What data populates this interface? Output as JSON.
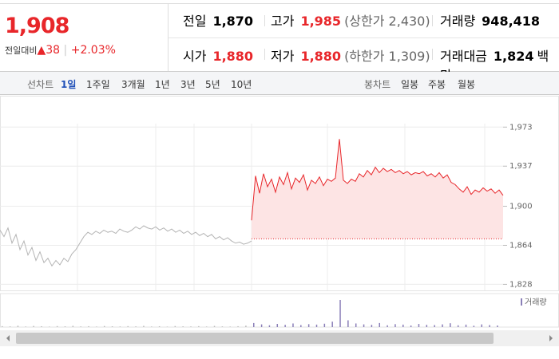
{
  "header": {
    "price": "1,908",
    "change_label": "전일대비",
    "change": "38",
    "change_pct": "+2.03%",
    "stats": [
      {
        "label": "전일",
        "value": "1,870"
      },
      {
        "label": "고가",
        "value": "1,985",
        "note": "(상한가 2,430)"
      },
      {
        "label": "거래량",
        "value": "948,418"
      },
      {
        "label": "시가",
        "value": "1,880"
      },
      {
        "label": "저가",
        "value": "1,880",
        "note": "(하한가 1,309)"
      },
      {
        "label": "거래대금",
        "value": "1,824",
        "unit": "백만"
      }
    ]
  },
  "tabs": {
    "line_label": "선차트",
    "line_items": [
      "1일",
      "1주일",
      "3개월",
      "1년",
      "3년",
      "5년",
      "10년"
    ],
    "candle_label": "봉차트",
    "candle_items": [
      "일봉",
      "주봉",
      "월봉"
    ]
  },
  "chart_data": {
    "type": "line",
    "ylim": [
      1818,
      1985
    ],
    "yticks": [
      {
        "value": 1973,
        "label": "1,973"
      },
      {
        "value": 1937,
        "label": "1,937"
      },
      {
        "value": 1900,
        "label": "1,900"
      },
      {
        "value": 1864,
        "label": "1,864"
      },
      {
        "value": 1828,
        "label": "1,828"
      }
    ],
    "reference_line": 1870,
    "grid": true,
    "series": [
      {
        "color": "#b4b4b4",
        "values": [
          1878,
          1872,
          1880,
          1866,
          1874,
          1860,
          1868,
          1855,
          1862,
          1850,
          1858,
          1848,
          1852,
          1845,
          1850,
          1846,
          1852,
          1849,
          1856,
          1860,
          1866,
          1872,
          1876,
          1874,
          1877,
          1875,
          1878,
          1876,
          1877,
          1875,
          1879,
          1877,
          1876,
          1878,
          1881,
          1879,
          1882,
          1880,
          1879,
          1881,
          1878,
          1880,
          1877,
          1879,
          1876,
          1878,
          1875,
          1877,
          1874,
          1876,
          1873,
          1875,
          1872,
          1874,
          1870,
          1872,
          1869,
          1871,
          1868,
          1866,
          1867,
          1865,
          1866,
          1868
        ]
      },
      {
        "color": "#e8262a",
        "values": [
          1887,
          1928,
          1912,
          1930,
          1918,
          1925,
          1913,
          1927,
          1920,
          1931,
          1916,
          1926,
          1922,
          1929,
          1915,
          1924,
          1921,
          1927,
          1919,
          1925,
          1923,
          1926,
          1962,
          1924,
          1921,
          1925,
          1923,
          1930,
          1927,
          1933,
          1929,
          1936,
          1931,
          1935,
          1932,
          1934,
          1931,
          1933,
          1930,
          1932,
          1929,
          1931,
          1930,
          1932,
          1928,
          1930,
          1927,
          1931,
          1926,
          1929,
          1922,
          1920,
          1916,
          1913,
          1918,
          1911,
          1915,
          1913,
          1917,
          1914,
          1916,
          1912,
          1915,
          1910
        ]
      }
    ],
    "volume": {
      "name": "거래량",
      "color": "#8a7fb8",
      "series": [
        [
          2000,
          1500,
          3000,
          1200,
          2500,
          1800,
          1000,
          2200,
          1600,
          2800,
          1400,
          1900,
          1100,
          2400,
          1700,
          1300,
          2100,
          1500,
          2700,
          1200,
          1800,
          1000,
          2300,
          1600,
          1400,
          2000,
          1200,
          2600,
          1500,
          1100,
          1900,
          3200
        ],
        [
          9000,
          6000,
          4000,
          7000,
          5000,
          8000,
          4500,
          6500,
          5500,
          7500,
          12000,
          60000,
          15000,
          8000,
          6000,
          5000,
          9000,
          4000,
          6500,
          5500,
          3500,
          7000,
          5000,
          4500,
          6000,
          8500,
          4000,
          5500,
          3000,
          6000,
          4500,
          3500
        ]
      ]
    }
  }
}
